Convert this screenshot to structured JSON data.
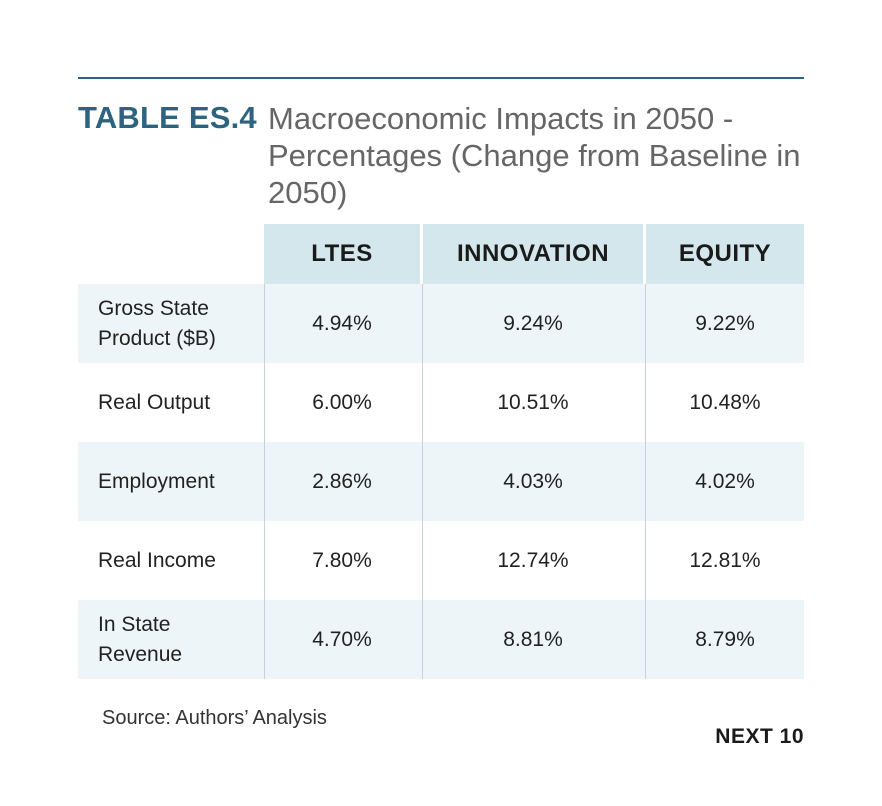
{
  "title": {
    "tag": "TABLE ES.4",
    "text": "Macroeconomic Impacts in 2050 - Percentages (Change from Baseline in 2050)"
  },
  "table": {
    "columns": [
      "LTES",
      "INNOVATION",
      "EQUITY"
    ],
    "rows": [
      {
        "label": "Gross State Product ($B)",
        "values": [
          "4.94%",
          "9.24%",
          "9.22%"
        ]
      },
      {
        "label": "Real Output",
        "values": [
          "6.00%",
          "10.51%",
          "10.48%"
        ]
      },
      {
        "label": "Employment",
        "values": [
          "2.86%",
          "4.03%",
          "4.02%"
        ]
      },
      {
        "label": "Real Income",
        "values": [
          "7.80%",
          "12.74%",
          "12.81%"
        ]
      },
      {
        "label": "In State Revenue",
        "values": [
          "4.70%",
          "8.81%",
          "8.79%"
        ]
      }
    ]
  },
  "source": "Source: Authors’ Analysis",
  "brand": "NEXT 10",
  "colors": {
    "accent": "#2e6380",
    "header_bg": "#d4e7ec",
    "row_shade": "#eef5f8"
  }
}
